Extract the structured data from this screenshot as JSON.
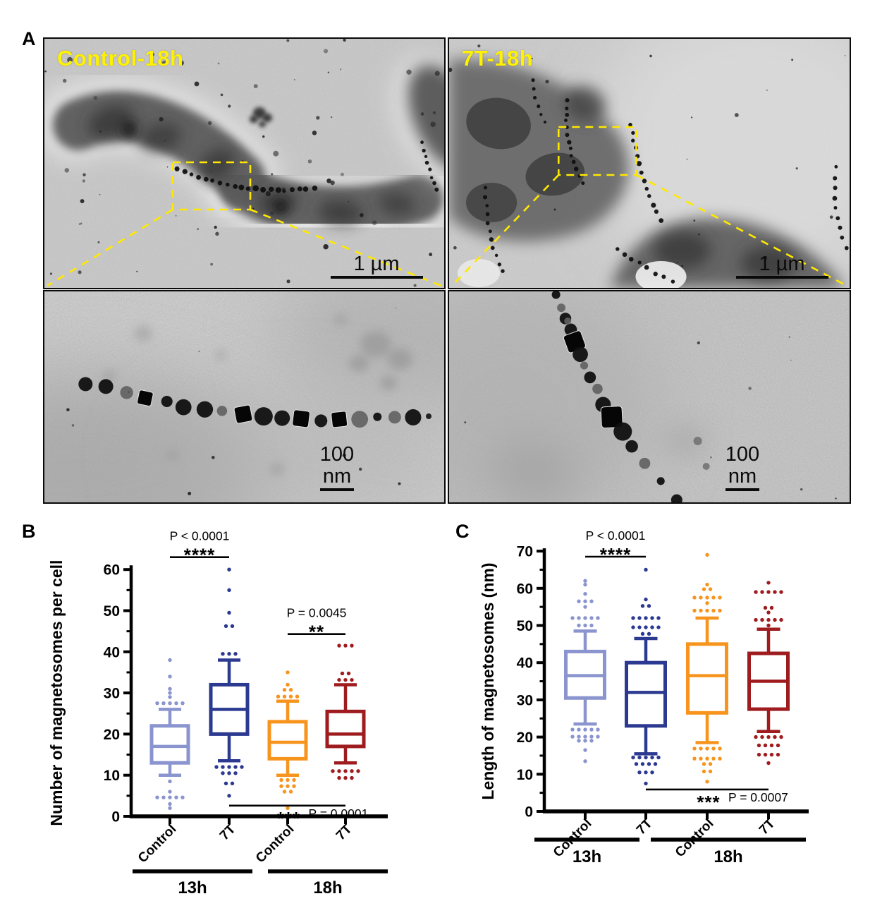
{
  "figure": {
    "panel_letters": {
      "a": "A",
      "b": "B",
      "c": "C"
    }
  },
  "panel_a": {
    "label_color": "#FFF200",
    "highlight_color": "#FFE800",
    "images": [
      {
        "name": "control-18h-overview",
        "label": "Control-18h",
        "scale_bar": "1 µm"
      },
      {
        "name": "7t-18h-overview",
        "label": "7T-18h",
        "scale_bar": "1 µm"
      },
      {
        "name": "control-18h-inset",
        "label": "",
        "scale_bar": "100 nm"
      },
      {
        "name": "7t-18h-inset",
        "label": "",
        "scale_bar": "100 nm"
      }
    ]
  },
  "chart_data": [
    {
      "id": "B",
      "type": "box",
      "ylabel": "Number of magnetosomes per cell",
      "ylim": [
        0,
        60
      ],
      "ytick_major": 10,
      "ytick_minor": 5,
      "grid": false,
      "groups": [
        {
          "label": "13h"
        },
        {
          "label": "18h"
        }
      ],
      "series": [
        {
          "category": "Control",
          "group": "13h",
          "color": "#8A94CE",
          "min": 10,
          "q1": 13,
          "median": 17,
          "q3": 22,
          "max": 26,
          "outliers_high": [
            38,
            34,
            31,
            30,
            29,
            28,
            28,
            27.5,
            27,
            27
          ],
          "outliers_low": [
            8.5,
            6,
            5,
            5,
            4.5,
            4.5,
            4,
            3,
            2
          ]
        },
        {
          "category": "7T",
          "group": "13h",
          "color": "#2B3990",
          "min": 13.5,
          "q1": 20,
          "median": 26,
          "q3": 32,
          "max": 38,
          "outliers_high": [
            60,
            55,
            49.5,
            46.5,
            46,
            40,
            39.5,
            39
          ],
          "outliers_low": [
            12.5,
            12.5,
            12,
            11.5,
            11.5,
            11,
            10.5,
            10,
            8,
            8,
            5
          ]
        },
        {
          "category": "Control",
          "group": "18h",
          "color": "#F7941D",
          "min": 10,
          "q1": 14,
          "median": 18,
          "q3": 23,
          "max": 28,
          "outliers_high": [
            35,
            32,
            31,
            30.5,
            29.5,
            29.5,
            29,
            28.5
          ],
          "outliers_low": [
            9,
            9,
            8.5,
            7.5,
            7.5,
            7,
            6,
            6,
            2
          ]
        },
        {
          "category": "7T",
          "group": "18h",
          "color": "#9E1B1E",
          "min": 13,
          "q1": 17,
          "median": 20,
          "q3": 25.5,
          "max": 32,
          "outliers_high": [
            42,
            41.5,
            41,
            35,
            34.5,
            33.5,
            33,
            33
          ],
          "outliers_low": [
            11.5,
            11,
            11,
            11,
            10.5,
            9.5,
            9.5,
            9
          ]
        }
      ],
      "significance": [
        {
          "between": [
            0,
            1
          ],
          "stars": "****",
          "p_text": "P < 0.0001",
          "placement": "top",
          "line_y": 63
        },
        {
          "between": [
            2,
            3
          ],
          "stars": "**",
          "p_text": "P = 0.0045",
          "placement": "top",
          "line_y": 44.3
        },
        {
          "between": [
            1,
            3
          ],
          "stars": "***",
          "p_text": "P = 0.0001",
          "placement": "bottom",
          "line_y": 2.6
        }
      ]
    },
    {
      "id": "C",
      "type": "box",
      "ylabel": "Length of magnetosomes (nm)",
      "ylim": [
        0,
        70
      ],
      "ytick_major": 10,
      "ytick_minor": 5,
      "grid": false,
      "groups": [
        {
          "label": "13h"
        },
        {
          "label": "18h"
        }
      ],
      "series": [
        {
          "category": "Control",
          "group": "13h",
          "color": "#8A94CE",
          "min": 23.5,
          "q1": 30.5,
          "median": 36.5,
          "q3": 43,
          "max": 48.5,
          "outliers_high": [
            62,
            61,
            58.5,
            57,
            56.5,
            56,
            55,
            53,
            52.5,
            52,
            51.5,
            51,
            50.5,
            50,
            49.5
          ],
          "outliers_low": [
            23,
            22.5,
            22,
            21.5,
            21,
            20.5,
            20.5,
            20,
            20,
            19.5,
            19.5,
            19,
            18.5,
            16.5,
            13.5
          ]
        },
        {
          "category": "7T",
          "group": "13h",
          "color": "#2B3990",
          "min": 15.5,
          "q1": 23,
          "median": 32,
          "q3": 40,
          "max": 46.5,
          "outliers_high": [
            65,
            57,
            55.5,
            55,
            53,
            52.5,
            52,
            51.5,
            51,
            50.5,
            50,
            49.5,
            49,
            48.5,
            48,
            47.5
          ],
          "outliers_low": [
            15,
            15,
            14.5,
            14,
            14,
            13.5,
            13,
            12.5,
            12,
            11,
            10.5,
            10,
            7.5
          ]
        },
        {
          "category": "Control",
          "group": "18h",
          "color": "#F7941D",
          "min": 18.5,
          "q1": 26.5,
          "median": 36.5,
          "q3": 45,
          "max": 52,
          "outliers_high": [
            69,
            61,
            60,
            59.5,
            58.5,
            58,
            57.5,
            57,
            56.5,
            56,
            55,
            54.5,
            54,
            53.5,
            53
          ],
          "outliers_low": [
            17.5,
            17.5,
            17,
            16.5,
            16,
            15,
            14.5,
            14,
            14,
            13.5,
            13,
            12.5,
            11,
            10.5,
            8
          ]
        },
        {
          "category": "7T",
          "group": "18h",
          "color": "#9E1B1E",
          "min": 21.5,
          "q1": 27.5,
          "median": 35,
          "q3": 42.5,
          "max": 49,
          "outliers_high": [
            61.5,
            60,
            59.5,
            59,
            58.5,
            58,
            55,
            54.5,
            53.5,
            52.5,
            52,
            51.5,
            51,
            50.5,
            50
          ],
          "outliers_low": [
            21,
            20.5,
            20,
            19.5,
            19,
            18.5,
            18,
            17.5,
            17,
            16,
            15.5,
            15,
            14.5,
            13
          ]
        }
      ],
      "significance": [
        {
          "between": [
            0,
            1
          ],
          "stars": "****",
          "p_text": "P < 0.0001",
          "placement": "top",
          "line_y": 68.5
        },
        {
          "between": [
            1,
            3
          ],
          "stars": "***",
          "p_text": "P = 0.0007",
          "placement": "bottom",
          "line_y": 5.9
        }
      ]
    }
  ]
}
